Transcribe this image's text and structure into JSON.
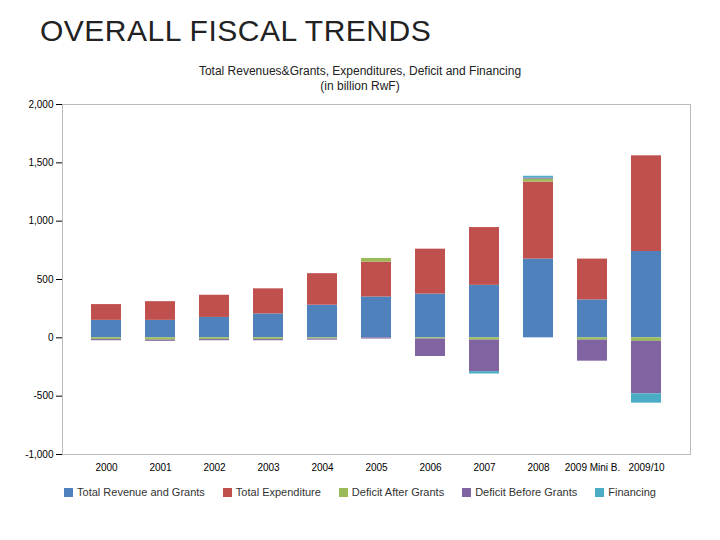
{
  "header": {
    "title": "OVERALL FISCAL TRENDS"
  },
  "chart_data": {
    "type": "bar",
    "stacked": true,
    "title": "Total Revenues&Grants, Expenditures, Deficit and Financing",
    "subtitle": "(in billion RwF)",
    "categories": [
      "2000",
      "2001",
      "2002",
      "2003",
      "2004",
      "2005",
      "2006",
      "2007",
      "2008",
      "2009 Mini B.",
      "2009/10"
    ],
    "series": [
      {
        "name": "Total Revenue and Grants",
        "color": "#4f81bd",
        "values": [
          150,
          150,
          175,
          205,
          280,
          350,
          375,
          450,
          675,
          325,
          740
        ]
      },
      {
        "name": "Total Expenditure",
        "color": "#c0504d",
        "values": [
          135,
          160,
          190,
          215,
          270,
          300,
          385,
          495,
          660,
          350,
          820
        ]
      },
      {
        "name": "Deficit After Grants",
        "color": "#9bbb59",
        "values": [
          -15,
          -20,
          -15,
          -15,
          -10,
          30,
          -10,
          -20,
          25,
          -20,
          -30
        ]
      },
      {
        "name": "Deficit Before Grants",
        "color": "#8064a2",
        "values": [
          -10,
          -10,
          -10,
          -10,
          -10,
          -10,
          -150,
          -270,
          10,
          -180,
          -450
        ]
      },
      {
        "name": "Financing",
        "color": "#4bacc6",
        "values": [
          0,
          0,
          0,
          0,
          0,
          0,
          0,
          -20,
          15,
          0,
          -80
        ]
      }
    ],
    "ylim": [
      -1000,
      2000
    ],
    "yticks": [
      {
        "value": -1000,
        "label": "-1,000"
      },
      {
        "value": -500,
        "label": "-500"
      },
      0,
      500,
      {
        "value": 1000,
        "label": "1,000"
      },
      {
        "value": 1500,
        "label": "1,500"
      },
      {
        "value": 2000,
        "label": "2,000"
      }
    ],
    "legend": "bottom",
    "grid": false
  }
}
